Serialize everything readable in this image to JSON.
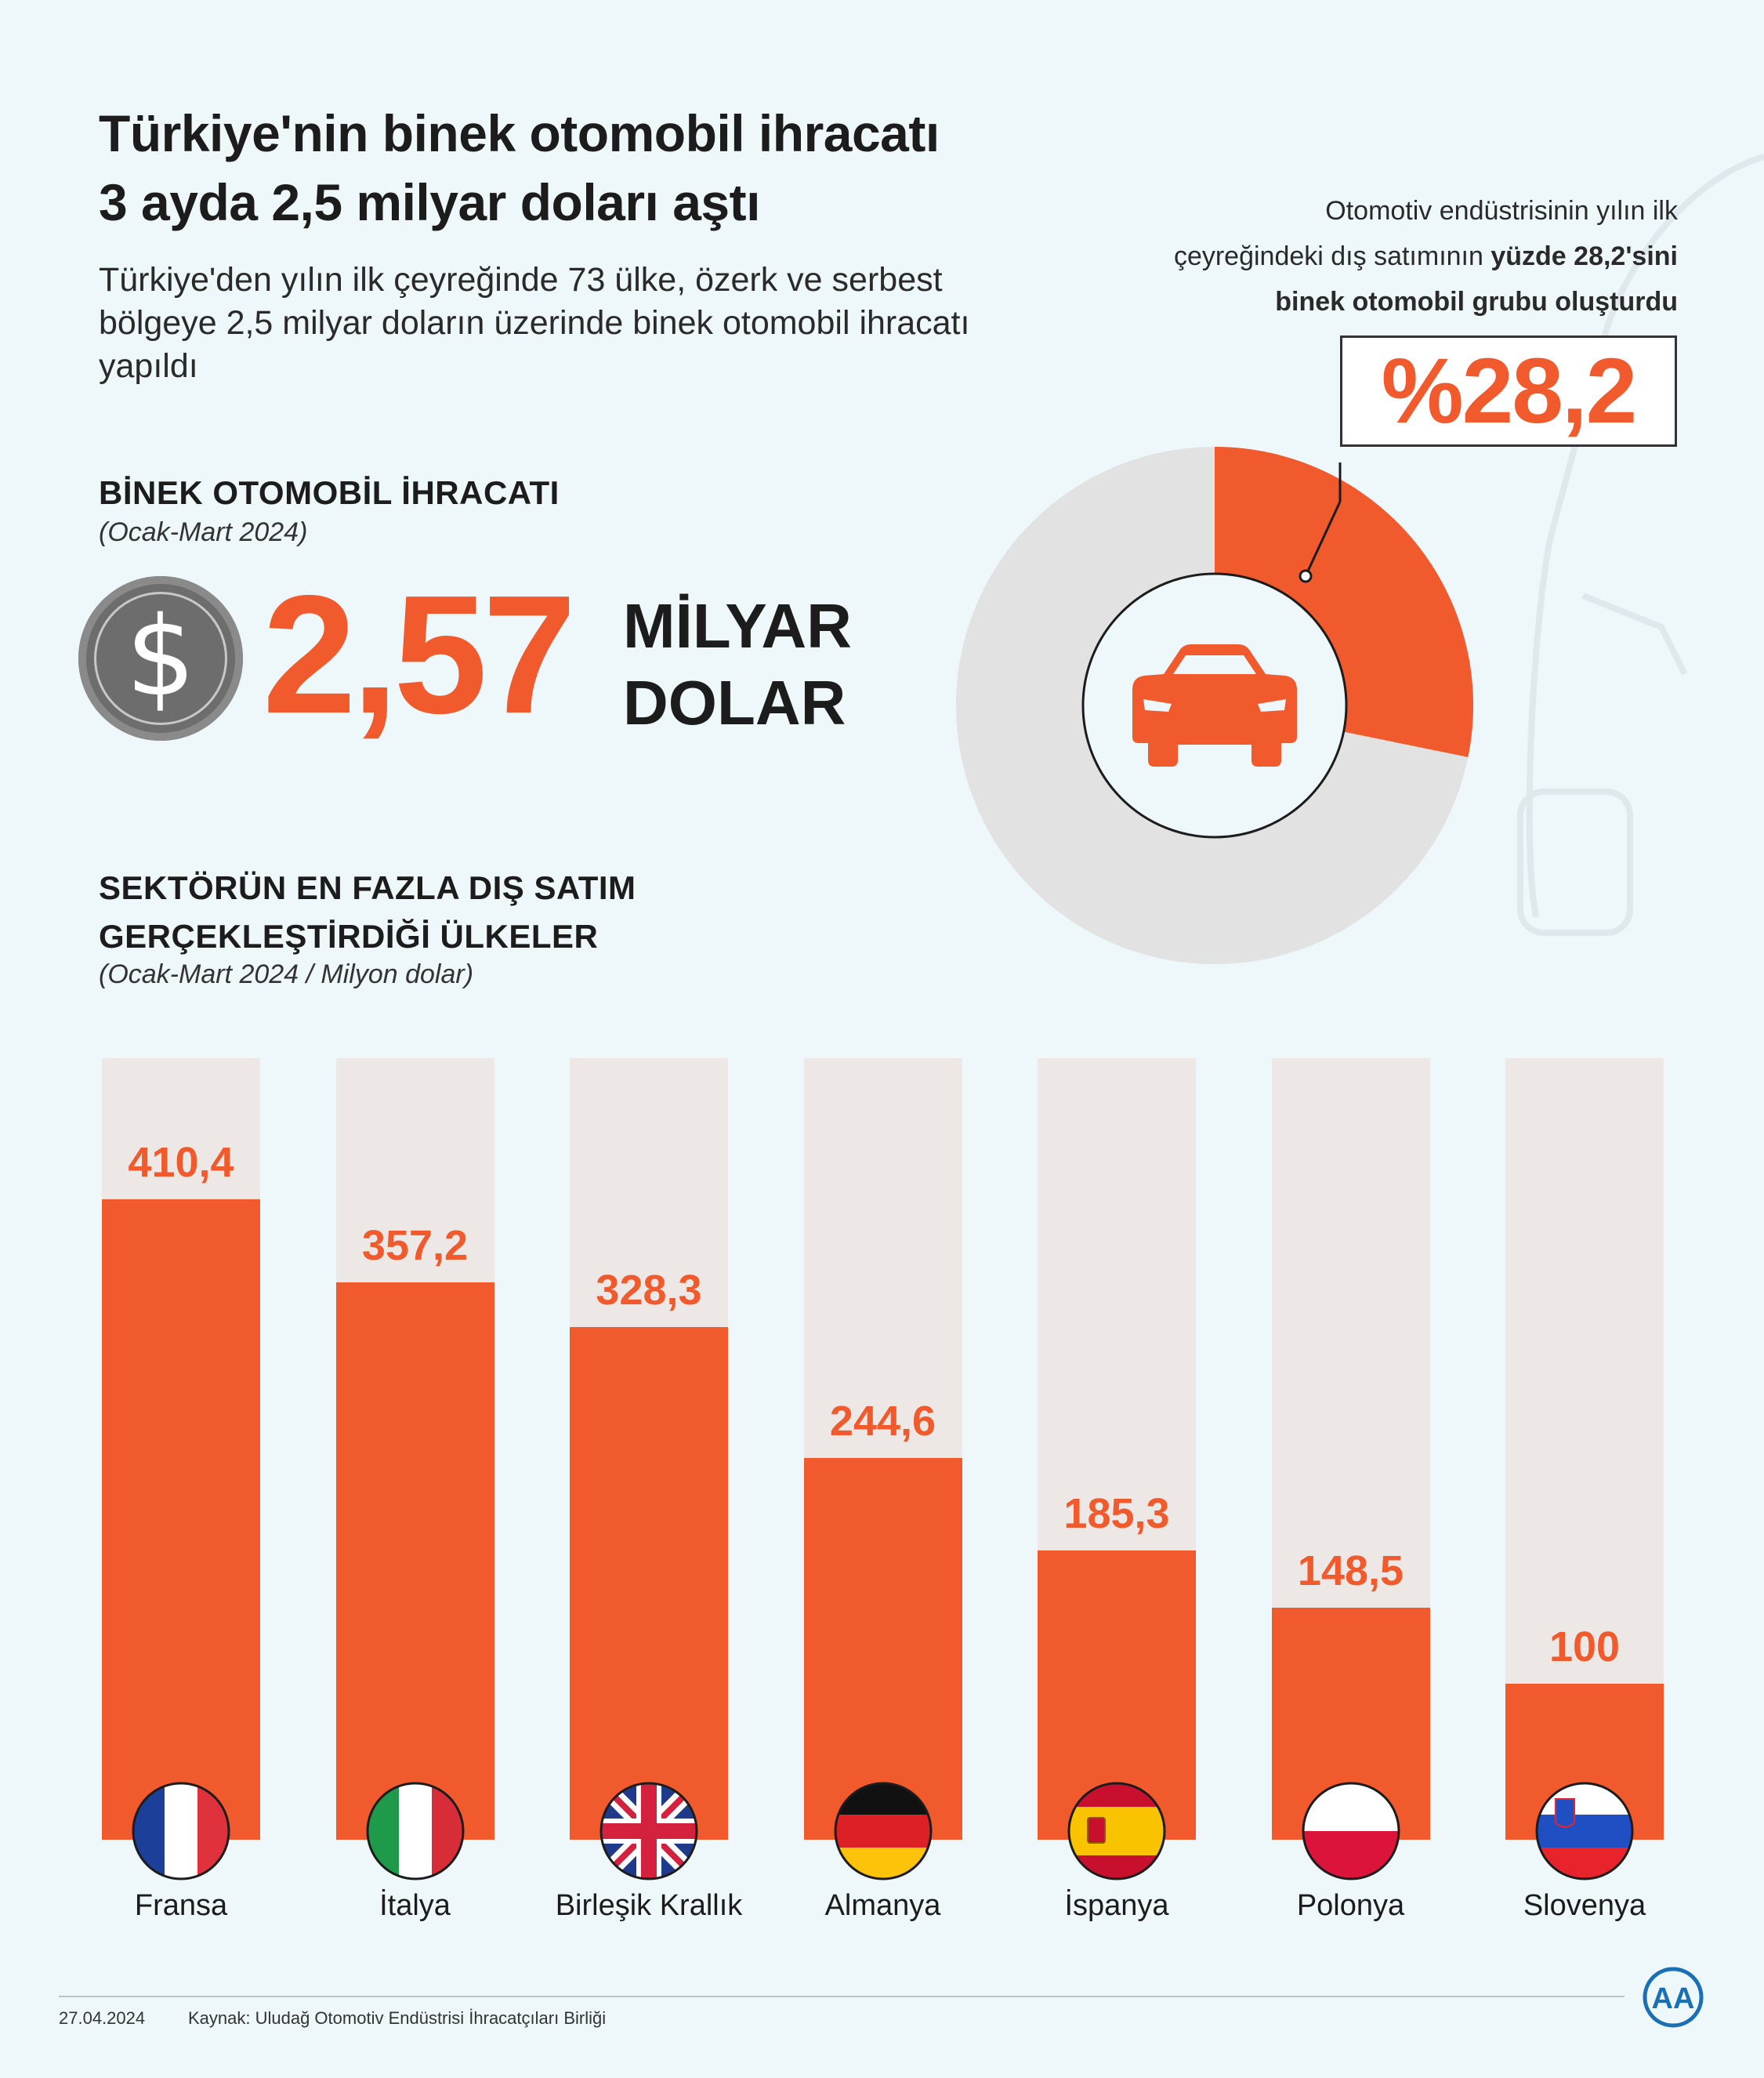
{
  "header": {
    "title_line1": "Türkiye'nin binek otomobil ihracatı",
    "title_line2": "3 ayda 2,5 milyar doları aştı",
    "subtitle": "Türkiye'den yılın ilk çeyreğinde 73 ülke, özerk ve serbest bölgeye 2,5 milyar doların üzerinde binek otomobil ihracatı yapıldı"
  },
  "export_block": {
    "heading": "BİNEK OTOMOBİL İHRACATI",
    "period": "(Ocak-Mart 2024)",
    "currency_symbol": "$",
    "value": "2,57",
    "unit_line1": "MİLYAR",
    "unit_line2": "DOLAR"
  },
  "share_block": {
    "note_line1": "Otomotiv endüstrisinin yılın ilk",
    "note_line2_pre": "çeyreğindeki dış satımının ",
    "note_line2_bold": "yüzde 28,2'sini",
    "note_line3_bold": "binek otomobil grubu oluşturdu",
    "percent_label": "%28,2",
    "percent_value": 28.2,
    "icon": "car-icon"
  },
  "countries_block": {
    "heading_line1": "SEKTÖRÜN EN FAZLA DIŞ SATIM",
    "heading_line2": "GERÇEKLEŞTİRDİĞİ ÜLKELER",
    "period": "(Ocak-Mart 2024 / Milyon dolar)"
  },
  "chart_data": {
    "type": "bar",
    "categories": [
      "Fransa",
      "İtalya",
      "Birleşik Krallık",
      "Almanya",
      "İspanya",
      "Polonya",
      "Slovenya"
    ],
    "values": [
      410.4,
      357.2,
      328.3,
      244.6,
      185.3,
      148.5,
      100
    ],
    "value_labels": [
      "410,4",
      "357,2",
      "328,3",
      "244,6",
      "185,3",
      "148,5",
      "100"
    ],
    "flags": [
      "flag-france-icon",
      "flag-italy-icon",
      "flag-uk-icon",
      "flag-germany-icon",
      "flag-spain-icon",
      "flag-poland-icon",
      "flag-slovenia-icon"
    ],
    "colors": {
      "bar": "#f05a2c",
      "track": "#ede8e5"
    }
  },
  "footer": {
    "date": "27.04.2024",
    "source": "Kaynak:  Uludağ Otomotiv Endüstrisi İhracatçıları Birliği",
    "logo": "AA"
  }
}
